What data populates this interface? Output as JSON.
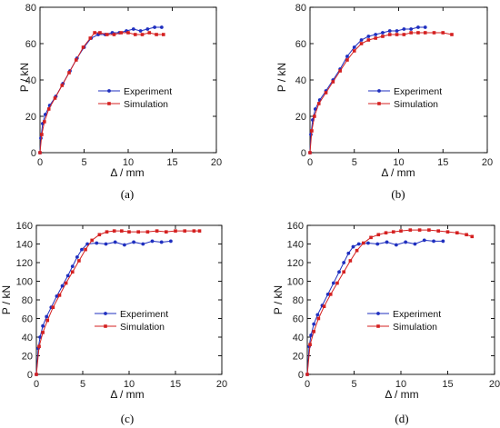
{
  "colors": {
    "experiment": "#1f2fbf",
    "simulation": "#d42020",
    "axis": "#000000"
  },
  "chart_data": [
    {
      "type": "line",
      "caption": "(a)",
      "xlabel": "Δ / mm",
      "ylabel": "P / kN",
      "xlim": [
        0,
        20
      ],
      "ylim": [
        0,
        80
      ],
      "xticks": [
        0,
        5,
        10,
        15,
        20
      ],
      "yticks": [
        0,
        20,
        40,
        60,
        80
      ],
      "legend_position": "center-right",
      "series": [
        {
          "name": "Experiment",
          "color": "#1f2fbf",
          "x": [
            0,
            0.1,
            0.3,
            0.6,
            1.1,
            1.8,
            2.6,
            3.4,
            4.2,
            5.0,
            5.8,
            6.6,
            7.4,
            8.2,
            9.0,
            9.8,
            10.6,
            11.4,
            12.2,
            13.0,
            13.8
          ],
          "y": [
            0,
            8,
            16,
            21,
            26,
            31,
            38,
            45,
            52,
            58,
            63,
            65,
            65,
            66,
            66,
            67,
            68,
            67,
            68,
            69,
            69
          ]
        },
        {
          "name": "Simulation",
          "color": "#d42020",
          "x": [
            0,
            0.2,
            0.5,
            1.0,
            1.7,
            2.5,
            3.3,
            4.1,
            4.9,
            5.7,
            6.2,
            6.8,
            7.6,
            8.4,
            9.2,
            10.0,
            10.8,
            11.6,
            12.4,
            13.2,
            14.0
          ],
          "y": [
            0,
            10,
            17,
            24,
            30,
            37,
            44,
            51,
            58,
            63,
            66,
            66,
            65,
            65,
            66,
            66,
            65,
            65,
            66,
            65,
            65
          ]
        }
      ]
    },
    {
      "type": "line",
      "caption": "(b)",
      "xlabel": "Δ / mm",
      "ylabel": "P / kN",
      "xlim": [
        0,
        20
      ],
      "ylim": [
        0,
        80
      ],
      "xticks": [
        0,
        5,
        10,
        15,
        20
      ],
      "yticks": [
        0,
        20,
        40,
        60,
        80
      ],
      "legend_position": "center-right",
      "series": [
        {
          "name": "Experiment",
          "color": "#1f2fbf",
          "x": [
            0,
            0.1,
            0.3,
            0.6,
            1.1,
            1.8,
            2.6,
            3.4,
            4.2,
            5.0,
            5.8,
            6.6,
            7.4,
            8.2,
            9.0,
            9.8,
            10.6,
            11.4,
            12.2,
            13.0
          ],
          "y": [
            0,
            10,
            18,
            24,
            29,
            34,
            40,
            46,
            53,
            58,
            62,
            64,
            65,
            66,
            67,
            67,
            68,
            68,
            69,
            69
          ]
        },
        {
          "name": "Simulation",
          "color": "#d42020",
          "x": [
            0,
            0.2,
            0.5,
            1.0,
            1.8,
            2.6,
            3.4,
            4.2,
            5.0,
            5.8,
            6.6,
            7.4,
            8.2,
            9.0,
            9.8,
            10.6,
            11.4,
            12.2,
            13.0,
            14.0,
            15.0,
            16.0
          ],
          "y": [
            0,
            12,
            20,
            27,
            33,
            39,
            45,
            51,
            56,
            60,
            62,
            63,
            64,
            65,
            65,
            65,
            66,
            66,
            66,
            66,
            66,
            65
          ]
        }
      ]
    },
    {
      "type": "line",
      "caption": "(c)",
      "xlabel": "Δ / mm",
      "ylabel": "P / kN",
      "xlim": [
        0,
        20
      ],
      "ylim": [
        0,
        160
      ],
      "xticks": [
        0,
        5,
        10,
        15,
        20
      ],
      "yticks": [
        0,
        20,
        40,
        60,
        80,
        100,
        120,
        140,
        160
      ],
      "legend_position": "center-right",
      "series": [
        {
          "name": "Experiment",
          "color": "#1f2fbf",
          "x": [
            0,
            0.2,
            0.4,
            0.7,
            1.1,
            1.6,
            2.2,
            2.8,
            3.4,
            3.9,
            4.4,
            4.9,
            5.5,
            6.5,
            7.5,
            8.5,
            9.5,
            10.5,
            11.5,
            12.5,
            13.5,
            14.5
          ],
          "y": [
            0,
            28,
            40,
            52,
            62,
            72,
            84,
            95,
            106,
            116,
            126,
            134,
            140,
            141,
            140,
            142,
            139,
            142,
            140,
            143,
            142,
            143
          ]
        },
        {
          "name": "Simulation",
          "color": "#d42020",
          "x": [
            0,
            0.3,
            0.7,
            1.2,
            1.8,
            2.5,
            3.2,
            3.9,
            4.6,
            5.3,
            6.0,
            6.8,
            7.6,
            8.4,
            9.2,
            10.0,
            11.0,
            12.0,
            13.0,
            14.0,
            15.0,
            16.0,
            17.0,
            17.6
          ],
          "y": [
            0,
            30,
            45,
            58,
            72,
            85,
            98,
            110,
            122,
            134,
            144,
            150,
            153,
            154,
            154,
            153,
            153,
            153,
            154,
            153,
            154,
            154,
            154,
            154
          ]
        }
      ]
    },
    {
      "type": "line",
      "caption": "(d)",
      "xlabel": "Δ / mm",
      "ylabel": "P / kN",
      "xlim": [
        0,
        20
      ],
      "ylim": [
        0,
        160
      ],
      "xticks": [
        0,
        5,
        10,
        15,
        20
      ],
      "yticks": [
        0,
        20,
        40,
        60,
        80,
        100,
        120,
        140,
        160
      ],
      "legend_position": "center-right",
      "series": [
        {
          "name": "Experiment",
          "color": "#1f2fbf",
          "x": [
            0,
            0.2,
            0.4,
            0.7,
            1.1,
            1.6,
            2.2,
            2.8,
            3.4,
            3.9,
            4.4,
            4.9,
            5.5,
            6.5,
            7.5,
            8.5,
            9.5,
            10.5,
            11.5,
            12.5,
            13.5,
            14.5
          ],
          "y": [
            0,
            30,
            42,
            54,
            64,
            74,
            86,
            98,
            110,
            120,
            130,
            137,
            140,
            141,
            140,
            142,
            139,
            142,
            140,
            144,
            143,
            143
          ]
        },
        {
          "name": "Simulation",
          "color": "#d42020",
          "x": [
            0,
            0.3,
            0.7,
            1.2,
            1.8,
            2.5,
            3.2,
            3.9,
            4.6,
            5.3,
            6.0,
            6.8,
            7.6,
            8.4,
            9.2,
            10.0,
            11.0,
            12.0,
            13.0,
            14.0,
            15.0,
            16.0,
            17.0,
            17.6
          ],
          "y": [
            0,
            32,
            46,
            60,
            73,
            86,
            98,
            110,
            122,
            133,
            141,
            147,
            150,
            152,
            153,
            154,
            155,
            155,
            155,
            154,
            153,
            152,
            150,
            148
          ]
        }
      ]
    }
  ]
}
